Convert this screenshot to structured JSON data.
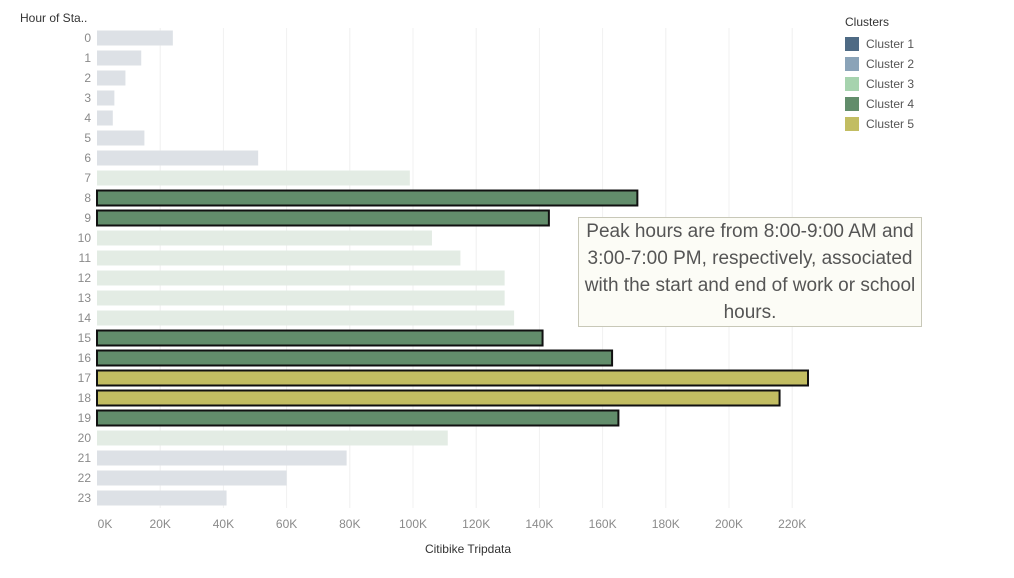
{
  "chart_data": {
    "type": "bar",
    "orientation": "horizontal",
    "y_axis_title": "Hour of Sta..",
    "x_axis_title": "Citibike Tripdata",
    "categories": [
      "0",
      "1",
      "2",
      "3",
      "4",
      "5",
      "6",
      "7",
      "8",
      "9",
      "10",
      "11",
      "12",
      "13",
      "14",
      "15",
      "16",
      "17",
      "18",
      "19",
      "20",
      "21",
      "22",
      "23"
    ],
    "values": [
      24000,
      14000,
      9000,
      5500,
      5000,
      15000,
      51000,
      99000,
      171000,
      143000,
      106000,
      115000,
      129000,
      129000,
      132000,
      141000,
      163000,
      225000,
      216000,
      165000,
      111000,
      79000,
      60000,
      41000
    ],
    "clusters": [
      1,
      1,
      1,
      1,
      1,
      1,
      1,
      3,
      4,
      4,
      3,
      3,
      3,
      3,
      3,
      4,
      4,
      5,
      5,
      4,
      3,
      1,
      1,
      1
    ],
    "highlighted": [
      "8",
      "9",
      "15",
      "16",
      "17",
      "18",
      "19"
    ],
    "x_ticks": [
      "0K",
      "20K",
      "40K",
      "60K",
      "80K",
      "100K",
      "120K",
      "140K",
      "160K",
      "180K",
      "200K",
      "220K"
    ],
    "xlim": [
      0,
      235000
    ],
    "grid": "vertical",
    "legend": {
      "title": "Clusters",
      "placement": "top-right",
      "items": [
        {
          "label": "Cluster 1",
          "color": "#4e6a84"
        },
        {
          "label": "Cluster 2",
          "color": "#8aa3b8"
        },
        {
          "label": "Cluster 3",
          "color": "#a6d3ae"
        },
        {
          "label": "Cluster 4",
          "color": "#628d6b"
        },
        {
          "label": "Cluster 5",
          "color": "#c2bd62"
        }
      ]
    },
    "faded_colors": {
      "1": "#dde1e6",
      "3": "#e3ece4"
    },
    "annotation": "Peak hours are from 8:00-9:00 AM and 3:00-7:00 PM, respectively, associated with the start and end of work or school hours."
  }
}
